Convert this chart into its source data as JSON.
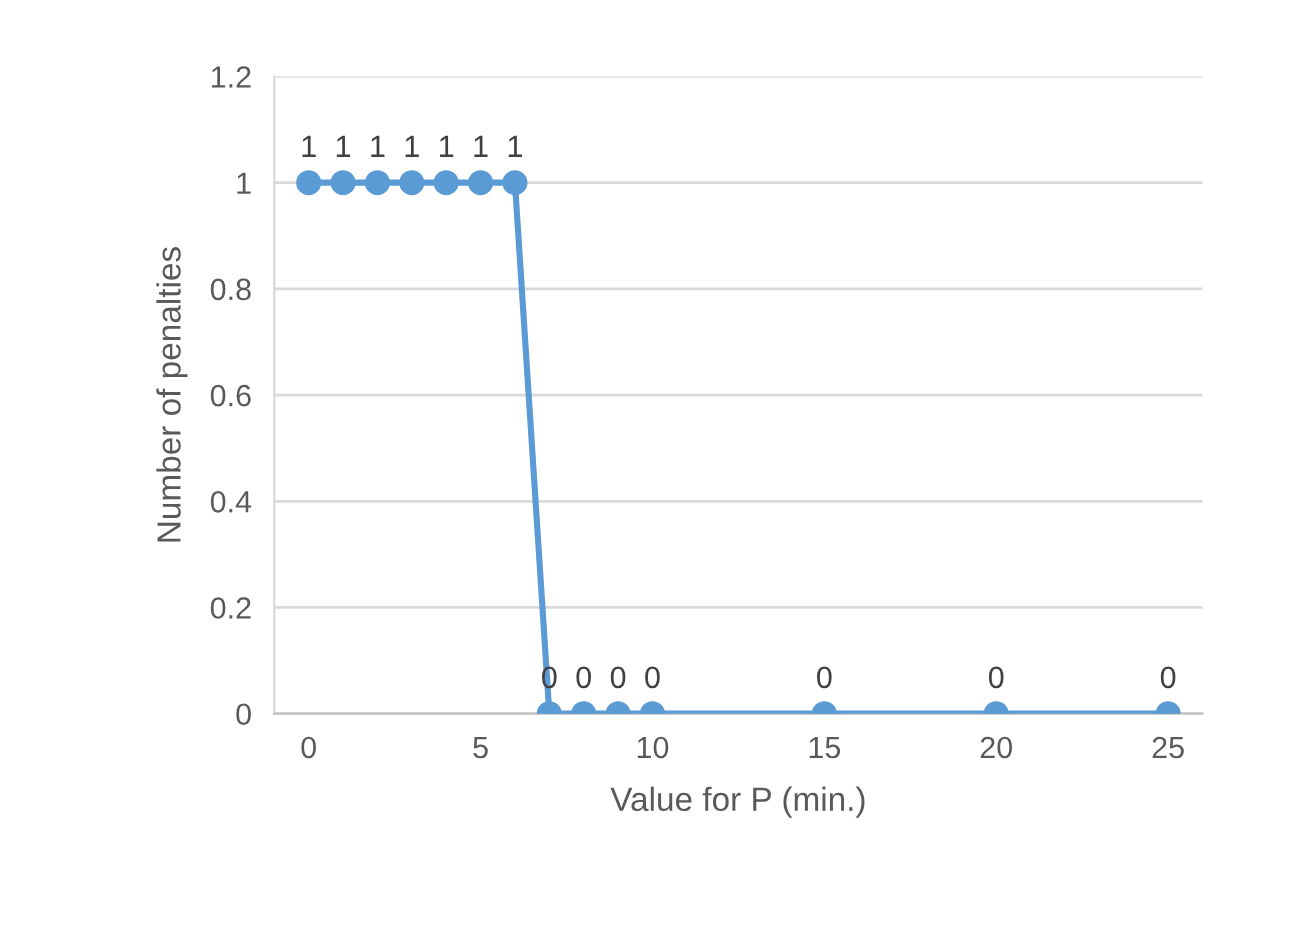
{
  "chart_data": {
    "type": "line",
    "xlabel": "Value for P (min.)",
    "ylabel": "Number of penalties",
    "x": [
      0,
      1,
      2,
      3,
      4,
      5,
      6,
      7,
      8,
      9,
      10,
      15,
      20,
      25
    ],
    "series": [
      {
        "color": "#5b9bd5",
        "values": [
          1,
          1,
          1,
          1,
          1,
          1,
          1,
          0,
          0,
          0,
          0,
          0,
          0,
          0
        ]
      }
    ],
    "xlim": [
      -1,
      26
    ],
    "xticks": [
      0,
      5,
      10,
      15,
      20,
      25
    ],
    "ylim": [
      0,
      1.2
    ],
    "yticks": [
      0,
      0.2,
      0.4,
      0.6,
      0.8,
      1,
      1.2
    ],
    "grid": "y",
    "marker": "circle",
    "line_style": "solid",
    "data_labels": true,
    "legend": false
  }
}
